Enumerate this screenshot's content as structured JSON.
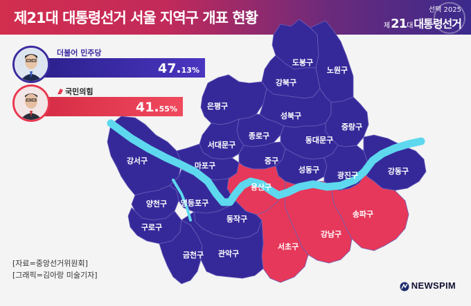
{
  "header": {
    "title": "제21대 대통령선거 서울 지역구 개표 현황",
    "logo_top": "선택 2025",
    "logo_num": "21",
    "logo_dae": "대",
    "logo_text": "대통령선거",
    "logo_prefix": "제"
  },
  "candidates": [
    {
      "party": "더불어 민주당",
      "pct_main": "47.",
      "pct_small": "13%",
      "color": "#3b2aa0"
    },
    {
      "party": "국민의힘",
      "pct_main": "41.",
      "pct_small": "55%",
      "color": "#e8374f"
    }
  ],
  "colors": {
    "democratic": "#35299a",
    "ppp": "#e6385a",
    "river": "#5ed8ee"
  },
  "districts": [
    {
      "name": "도봉구",
      "winner": "democratic"
    },
    {
      "name": "노원구",
      "winner": "democratic"
    },
    {
      "name": "강북구",
      "winner": "democratic"
    },
    {
      "name": "은평구",
      "winner": "democratic"
    },
    {
      "name": "성북구",
      "winner": "democratic"
    },
    {
      "name": "중랑구",
      "winner": "democratic"
    },
    {
      "name": "종로구",
      "winner": "democratic"
    },
    {
      "name": "동대문구",
      "winner": "democratic"
    },
    {
      "name": "서대문구",
      "winner": "democratic"
    },
    {
      "name": "강서구",
      "winner": "democratic"
    },
    {
      "name": "마포구",
      "winner": "democratic"
    },
    {
      "name": "중구",
      "winner": "democratic"
    },
    {
      "name": "성동구",
      "winner": "democratic"
    },
    {
      "name": "광진구",
      "winner": "democratic"
    },
    {
      "name": "강동구",
      "winner": "democratic"
    },
    {
      "name": "용산구",
      "winner": "ppp"
    },
    {
      "name": "양천구",
      "winner": "democratic"
    },
    {
      "name": "영등포구",
      "winner": "democratic"
    },
    {
      "name": "구로구",
      "winner": "democratic"
    },
    {
      "name": "동작구",
      "winner": "democratic"
    },
    {
      "name": "송파구",
      "winner": "ppp"
    },
    {
      "name": "강남구",
      "winner": "ppp"
    },
    {
      "name": "서초구",
      "winner": "ppp"
    },
    {
      "name": "금천구",
      "winner": "democratic"
    },
    {
      "name": "관악구",
      "winner": "democratic"
    }
  ],
  "sources": [
    "[자료=중앙선거위원회]",
    "[그래픽=김아랑 미술기자]"
  ],
  "brand": "NEWSPIM"
}
